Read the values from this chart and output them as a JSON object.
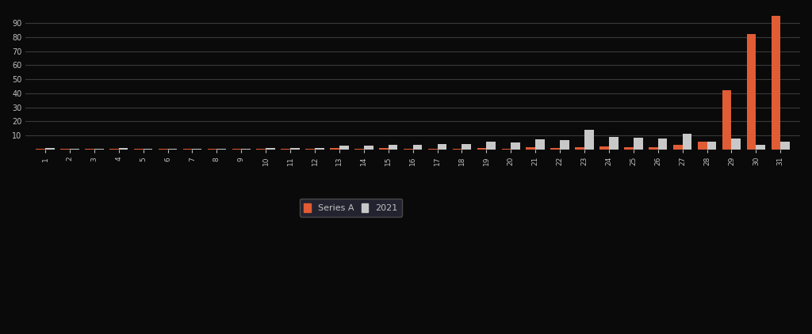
{
  "categories": [
    "1",
    "2",
    "3",
    "4",
    "5",
    "6",
    "7",
    "8",
    "9",
    "10",
    "11",
    "12",
    "13",
    "14",
    "15",
    "16",
    "17",
    "18",
    "19",
    "20",
    "21",
    "22",
    "23",
    "24",
    "25",
    "26",
    "27",
    "28",
    "29",
    "30",
    "31"
  ],
  "series_orange": [
    0.5,
    0.2,
    0.2,
    0.5,
    0.3,
    0.2,
    0.2,
    0.2,
    0.2,
    0.2,
    0.2,
    0.2,
    0.8,
    0.5,
    0.8,
    0.5,
    0.5,
    0.5,
    1.2,
    0.5,
    1.5,
    1.0,
    1.5,
    2.0,
    1.5,
    1.8,
    3.5,
    5.5,
    42.0,
    82.0,
    95.0
  ],
  "series_gray": [
    0.8,
    0.5,
    0.5,
    0.8,
    0.5,
    0.5,
    0.6,
    0.6,
    0.6,
    0.7,
    0.8,
    0.9,
    2.5,
    2.8,
    3.5,
    3.2,
    4.0,
    3.8,
    5.5,
    5.2,
    7.0,
    6.5,
    14.0,
    9.0,
    8.5,
    8.0,
    11.0,
    5.5,
    8.0,
    3.5,
    5.5
  ],
  "series_orange_color": "#e05c35",
  "series_gray_color": "#c8c8c8",
  "background_color": "#0a0a0a",
  "grid_color": "#3a3a3a",
  "text_color": "#c0c0c0",
  "yticks": [
    10,
    20,
    30,
    40,
    50,
    60,
    70,
    80,
    90
  ],
  "ylim": [
    0,
    98
  ],
  "legend_label_orange": "Series A",
  "legend_label_gray": "2021",
  "legend_bg": "#2a2a3a",
  "legend_edge": "#555555"
}
